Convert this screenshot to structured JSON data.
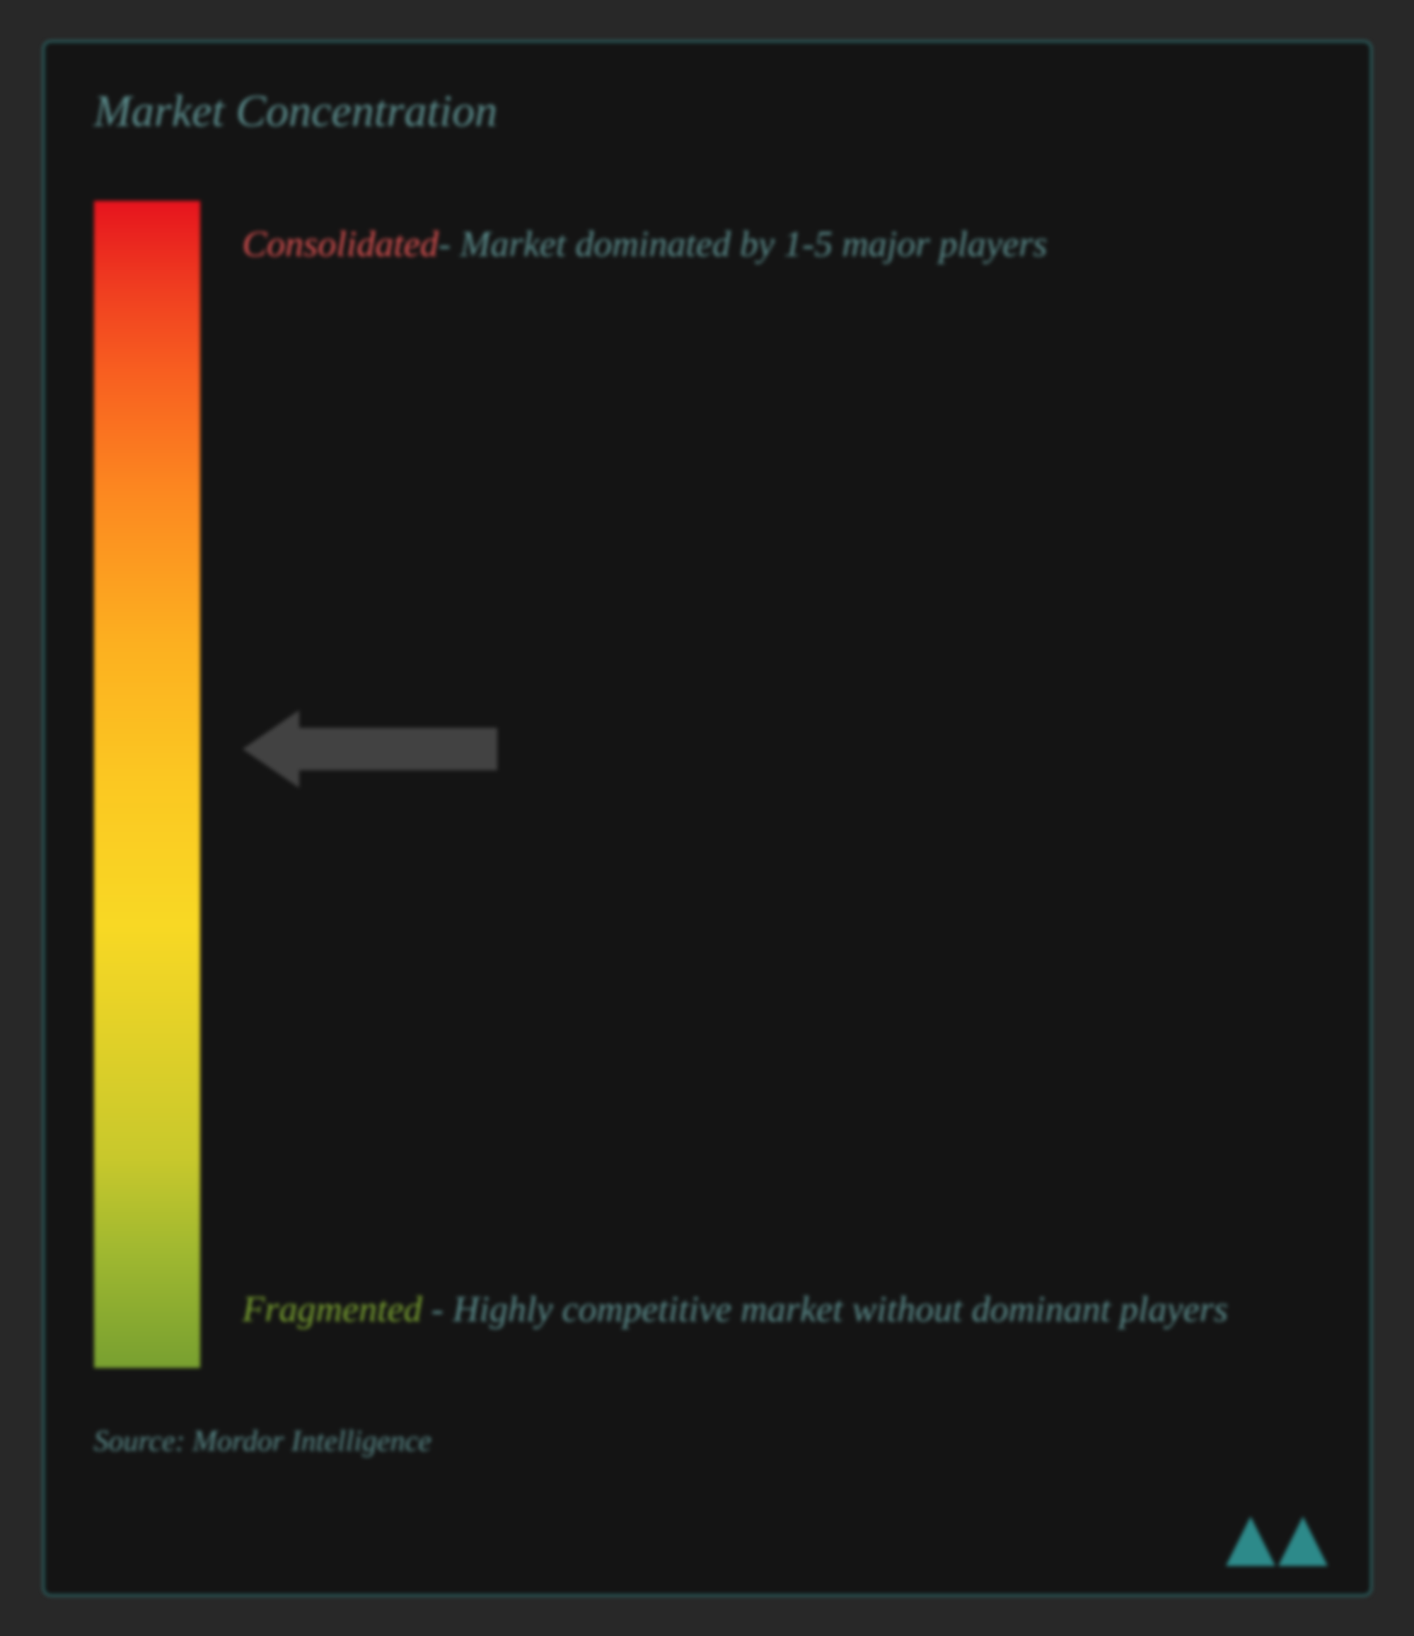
{
  "title": "Market Concentration",
  "gradient": {
    "colors": [
      "#e6141e",
      "#f04020",
      "#f86020",
      "#fc8820",
      "#fcb020",
      "#fbc822",
      "#f8d824",
      "#e0d028",
      "#c8c82c",
      "#a0b830",
      "#78a030"
    ],
    "stops": [
      0,
      8,
      15,
      25,
      38,
      50,
      62,
      72,
      82,
      90,
      100
    ]
  },
  "labels": {
    "top": {
      "highlight": "Consolidated",
      "highlight_color": "#d85050",
      "text": "- Market dominated by 1-5 major players"
    },
    "bottom": {
      "highlight": "Fragmented",
      "highlight_color": "#78a030",
      "text": " - Highly competitive market without dominant players"
    }
  },
  "arrow": {
    "position_percent": 47,
    "color": "#424242"
  },
  "source": "Source: Mordor Intelligence",
  "styling": {
    "background_color": "#141414",
    "outer_background": "#282828",
    "border_color": "#2d6b6b",
    "text_color": "#5a8a8a",
    "title_fontsize": 64,
    "label_fontsize": 52,
    "source_fontsize": 42,
    "font_style": "italic",
    "font_family": "Georgia, serif",
    "blur_effect": true
  },
  "logo": {
    "color": "#2d8a8a"
  }
}
